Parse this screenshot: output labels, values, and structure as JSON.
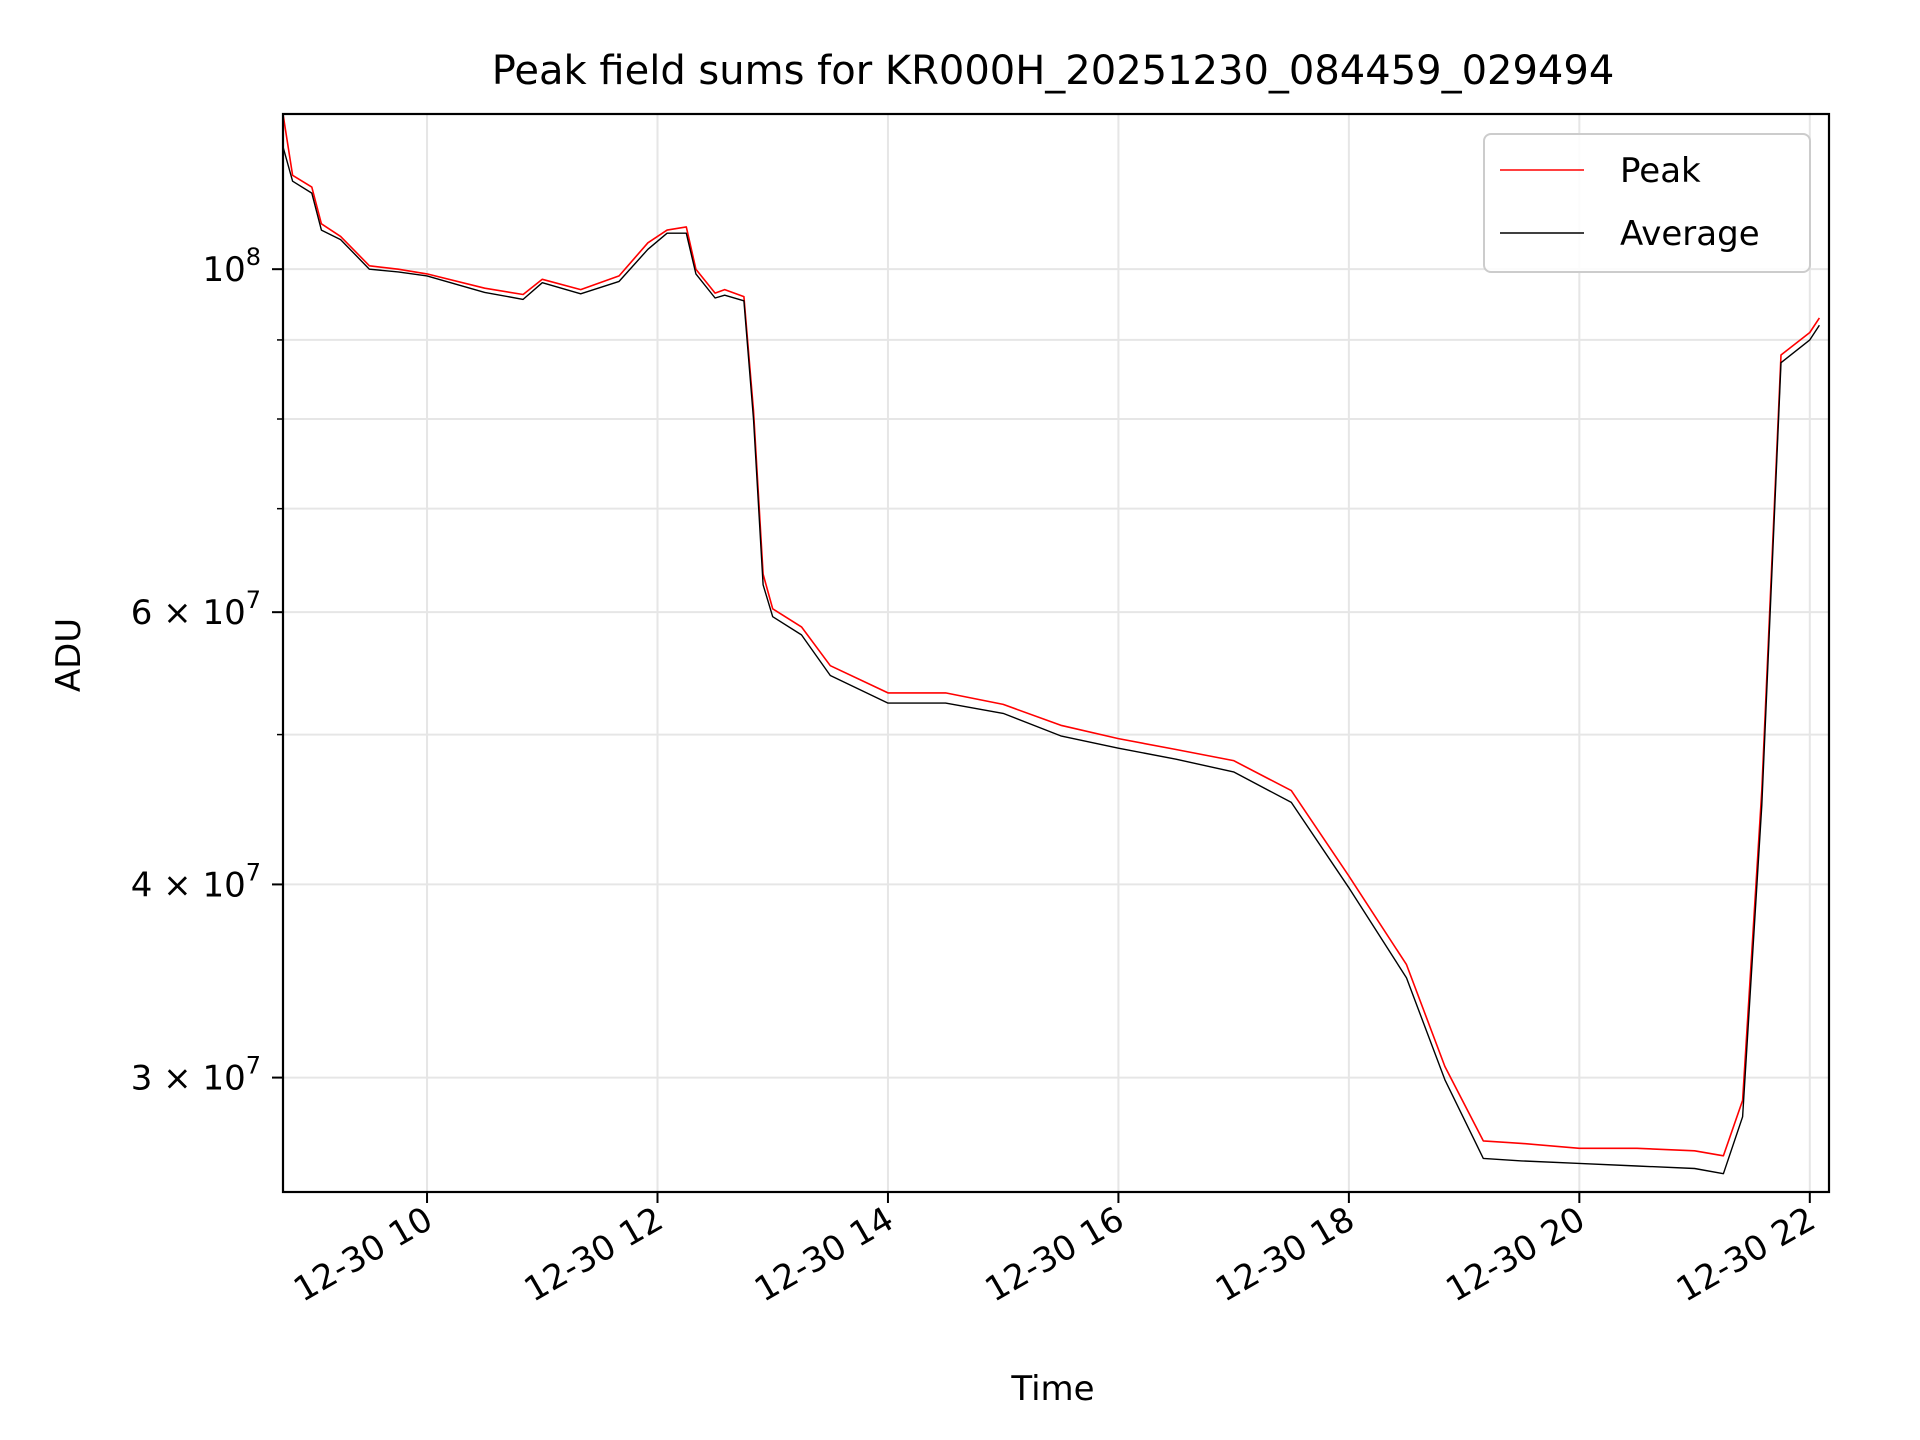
{
  "chart_data": {
    "type": "line",
    "title": "Peak field sums for KR000H_20251230_084459_029494",
    "xlabel": "Time",
    "ylabel": "ADU",
    "y_scale": "log",
    "grid": true,
    "legend_position": "top-right",
    "xlim": [
      "2025-12-30 08:45",
      "2025-12-30 22:10"
    ],
    "ylim": [
      25300000,
      126000000
    ],
    "x_ticks": [
      {
        "value": "2025-12-30 10:00",
        "label": "12-30 10"
      },
      {
        "value": "2025-12-30 12:00",
        "label": "12-30 12"
      },
      {
        "value": "2025-12-30 14:00",
        "label": "12-30 14"
      },
      {
        "value": "2025-12-30 16:00",
        "label": "12-30 16"
      },
      {
        "value": "2025-12-30 18:00",
        "label": "12-30 18"
      },
      {
        "value": "2025-12-30 20:00",
        "label": "12-30 20"
      },
      {
        "value": "2025-12-30 22:00",
        "label": "12-30 22"
      }
    ],
    "y_ticks": [
      {
        "value": 100000000,
        "base": "10",
        "exp": "8",
        "mant": ""
      },
      {
        "value": 60000000,
        "base": "10",
        "exp": "7",
        "mant": "6 × "
      },
      {
        "value": 40000000,
        "base": "10",
        "exp": "7",
        "mant": "4 × "
      },
      {
        "value": 30000000,
        "base": "10",
        "exp": "7",
        "mant": "3 × "
      }
    ],
    "y_minor_ticks": [
      50000000,
      70000000,
      80000000,
      90000000
    ],
    "series": [
      {
        "name": "Peak",
        "color": "#ff0000",
        "x": [
          "2025-12-30 08:45",
          "2025-12-30 08:50",
          "2025-12-30 09:00",
          "2025-12-30 09:05",
          "2025-12-30 09:15",
          "2025-12-30 09:30",
          "2025-12-30 09:45",
          "2025-12-30 10:00",
          "2025-12-30 10:30",
          "2025-12-30 10:50",
          "2025-12-30 11:00",
          "2025-12-30 11:20",
          "2025-12-30 11:40",
          "2025-12-30 11:55",
          "2025-12-30 12:05",
          "2025-12-30 12:15",
          "2025-12-30 12:20",
          "2025-12-30 12:30",
          "2025-12-30 12:35",
          "2025-12-30 12:45",
          "2025-12-30 12:50",
          "2025-12-30 12:55",
          "2025-12-30 13:00",
          "2025-12-30 13:15",
          "2025-12-30 13:30",
          "2025-12-30 14:00",
          "2025-12-30 14:30",
          "2025-12-30 15:00",
          "2025-12-30 15:30",
          "2025-12-30 16:00",
          "2025-12-30 16:30",
          "2025-12-30 17:00",
          "2025-12-30 17:30",
          "2025-12-30 18:00",
          "2025-12-30 18:30",
          "2025-12-30 18:50",
          "2025-12-30 19:10",
          "2025-12-30 19:30",
          "2025-12-30 20:00",
          "2025-12-30 20:30",
          "2025-12-30 21:00",
          "2025-12-30 21:15",
          "2025-12-30 21:25",
          "2025-12-30 21:35",
          "2025-12-30 21:45",
          "2025-12-30 22:00",
          "2025-12-30 22:05"
        ],
        "values": [
          126000000,
          115000000,
          113000000,
          107000000,
          105000000,
          100500000,
          100000000,
          99300000,
          97200000,
          96300000,
          98500000,
          97000000,
          99000000,
          104000000,
          106000000,
          106500000,
          100000000,
          96500000,
          97000000,
          96000000,
          81000000,
          63500000,
          60300000,
          58700000,
          55400000,
          53200000,
          53200000,
          52300000,
          50700000,
          49700000,
          48900000,
          48100000,
          46000000,
          40500000,
          35500000,
          30500000,
          27300000,
          27200000,
          27000000,
          27000000,
          26900000,
          26700000,
          29000000,
          46000000,
          88000000,
          91000000,
          93000000
        ]
      },
      {
        "name": "Average",
        "color": "#000000",
        "x": [
          "2025-12-30 08:45",
          "2025-12-30 08:50",
          "2025-12-30 09:00",
          "2025-12-30 09:05",
          "2025-12-30 09:15",
          "2025-12-30 09:30",
          "2025-12-30 09:45",
          "2025-12-30 10:00",
          "2025-12-30 10:30",
          "2025-12-30 10:50",
          "2025-12-30 11:00",
          "2025-12-30 11:20",
          "2025-12-30 11:40",
          "2025-12-30 11:55",
          "2025-12-30 12:05",
          "2025-12-30 12:15",
          "2025-12-30 12:20",
          "2025-12-30 12:30",
          "2025-12-30 12:35",
          "2025-12-30 12:45",
          "2025-12-30 12:50",
          "2025-12-30 12:55",
          "2025-12-30 13:00",
          "2025-12-30 13:15",
          "2025-12-30 13:30",
          "2025-12-30 14:00",
          "2025-12-30 14:30",
          "2025-12-30 15:00",
          "2025-12-30 15:30",
          "2025-12-30 16:00",
          "2025-12-30 16:30",
          "2025-12-30 17:00",
          "2025-12-30 17:30",
          "2025-12-30 18:00",
          "2025-12-30 18:30",
          "2025-12-30 18:50",
          "2025-12-30 19:10",
          "2025-12-30 19:30",
          "2025-12-30 20:00",
          "2025-12-30 20:30",
          "2025-12-30 21:00",
          "2025-12-30 21:15",
          "2025-12-30 21:25",
          "2025-12-30 21:35",
          "2025-12-30 21:45",
          "2025-12-30 22:00",
          "2025-12-30 22:05"
        ],
        "values": [
          120000000,
          114000000,
          112000000,
          106000000,
          104500000,
          100000000,
          99600000,
          99000000,
          96600000,
          95600000,
          98000000,
          96400000,
          98200000,
          103000000,
          105500000,
          105500000,
          99300000,
          95800000,
          96200000,
          95400000,
          80000000,
          62500000,
          59600000,
          58000000,
          54600000,
          52400000,
          52400000,
          51600000,
          49900000,
          49000000,
          48200000,
          47300000,
          45200000,
          39800000,
          34800000,
          29900000,
          26600000,
          26500000,
          26400000,
          26300000,
          26200000,
          26000000,
          28300000,
          45000000,
          87000000,
          90000000,
          92000000
        ]
      }
    ]
  }
}
